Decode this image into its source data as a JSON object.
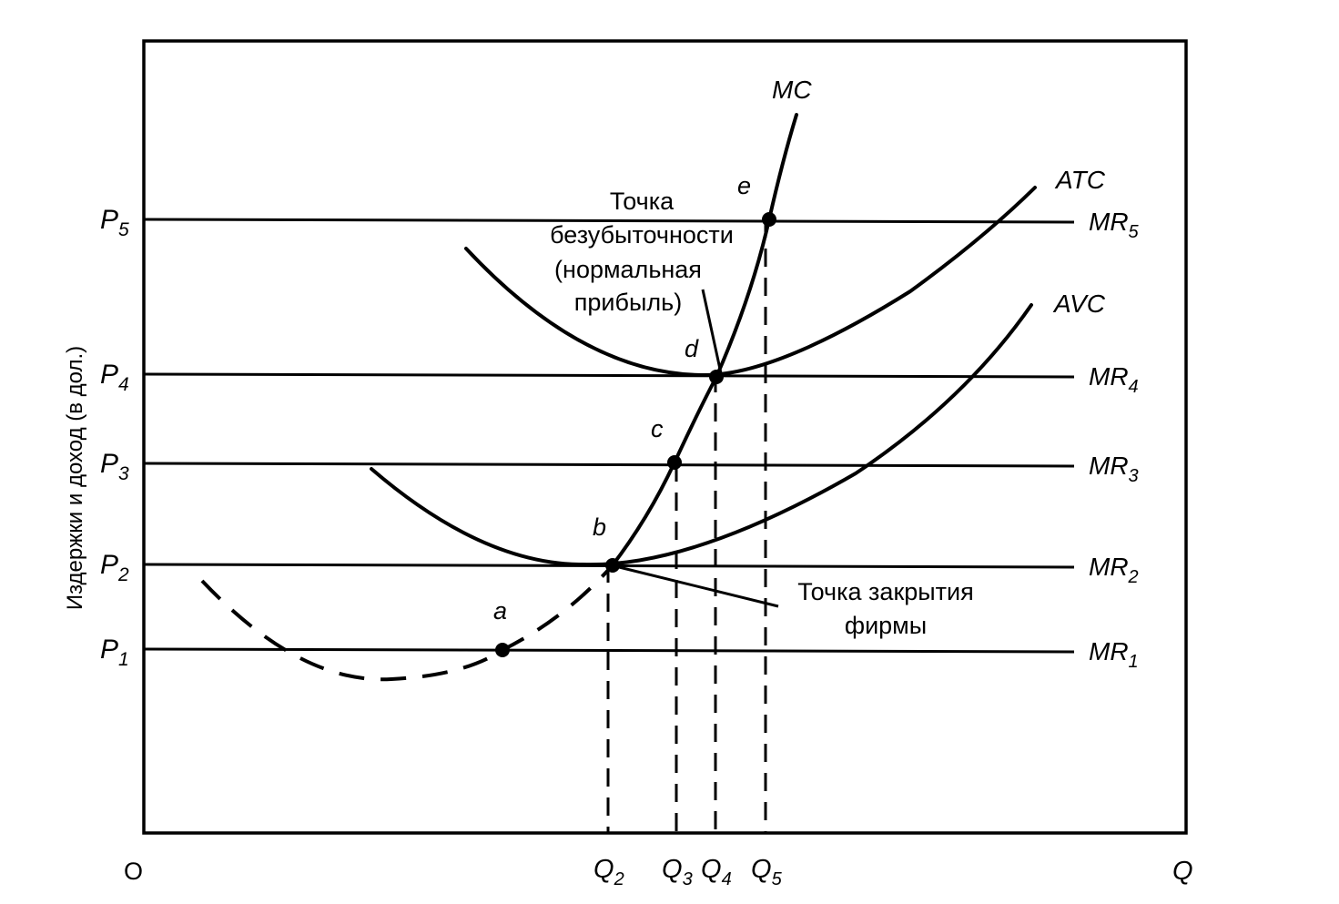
{
  "chart_data": {
    "type": "line",
    "title": "",
    "xlabel": "Q",
    "ylabel": "Издержки и доход (в дол.)",
    "origin_label": "O",
    "price_levels": [
      {
        "label": "P",
        "sub": "1",
        "mr": "MR",
        "mr_sub": "1",
        "value": 1
      },
      {
        "label": "P",
        "sub": "2",
        "mr": "MR",
        "mr_sub": "2",
        "value": 2
      },
      {
        "label": "P",
        "sub": "3",
        "mr": "MR",
        "mr_sub": "3",
        "value": 3
      },
      {
        "label": "P",
        "sub": "4",
        "mr": "MR",
        "mr_sub": "4",
        "value": 4
      },
      {
        "label": "P",
        "sub": "5",
        "mr": "MR",
        "mr_sub": "5",
        "value": 5
      }
    ],
    "quantity_levels": [
      {
        "label": "Q",
        "sub": "2"
      },
      {
        "label": "Q",
        "sub": "3"
      },
      {
        "label": "Q",
        "sub": "4"
      },
      {
        "label": "Q",
        "sub": "5"
      }
    ],
    "series": [
      {
        "name": "MC",
        "style": "solid"
      },
      {
        "name": "ATC",
        "style": "solid"
      },
      {
        "name": "AVC",
        "style": "solid"
      }
    ],
    "points": [
      {
        "label": "a"
      },
      {
        "label": "b"
      },
      {
        "label": "c"
      },
      {
        "label": "d"
      },
      {
        "label": "e"
      }
    ],
    "annotations": [
      {
        "lines": [
          "Точка",
          "безубыточности",
          "(нормальная",
          "прибыль)"
        ]
      },
      {
        "lines": [
          "Точка закрытия",
          "фирмы"
        ]
      }
    ]
  }
}
